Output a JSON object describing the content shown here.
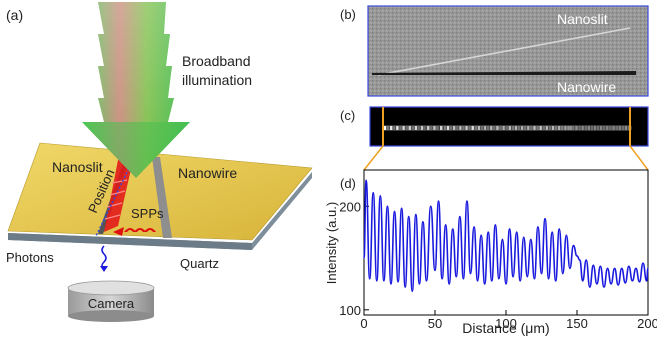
{
  "panels": {
    "a": {
      "tag": "(a)",
      "illumination_line1": "Broadband",
      "illumination_line2": "illumination",
      "nanoslit": "Nanoslit",
      "nanowire": "Nanowire",
      "position": "Position",
      "spps": "SPPs",
      "photons": "Photons",
      "quartz": "Quartz",
      "camera": "Camera"
    },
    "b": {
      "tag": "(b)",
      "nanoslit": "Nanoslit",
      "nanowire": "Nanowire"
    },
    "c": {
      "tag": "(c)"
    },
    "d": {
      "tag": "(d)"
    }
  },
  "colors": {
    "gold": "#e6c84a",
    "substrate": "#8a9aa6",
    "spp_red": "#e01010",
    "line_blue": "#1a1adf",
    "frame_orange": "#f0a020"
  },
  "chart_data": {
    "type": "line",
    "title": "",
    "xlabel": "Distance (μm)",
    "ylabel": "Intensity (a.u.)",
    "xlim": [
      0,
      200
    ],
    "ylim": [
      95,
      235
    ],
    "xticks": [
      0,
      50,
      100,
      150,
      200
    ],
    "yticks": [
      100,
      200
    ],
    "grid": false,
    "legend": "none",
    "series": [
      {
        "values": [
          {
            "x": 0,
            "y": 150
          },
          {
            "x": 1.5,
            "y": 225
          },
          {
            "x": 4,
            "y": 130
          },
          {
            "x": 6.5,
            "y": 213
          },
          {
            "x": 9,
            "y": 128
          },
          {
            "x": 11.5,
            "y": 210
          },
          {
            "x": 14,
            "y": 128
          },
          {
            "x": 16.5,
            "y": 200
          },
          {
            "x": 19,
            "y": 125
          },
          {
            "x": 21.5,
            "y": 195
          },
          {
            "x": 24,
            "y": 127
          },
          {
            "x": 26.5,
            "y": 198
          },
          {
            "x": 29,
            "y": 122
          },
          {
            "x": 31.5,
            "y": 190
          },
          {
            "x": 34,
            "y": 118
          },
          {
            "x": 36.5,
            "y": 192
          },
          {
            "x": 39,
            "y": 125
          },
          {
            "x": 41.5,
            "y": 185
          },
          {
            "x": 44,
            "y": 128
          },
          {
            "x": 47,
            "y": 200
          },
          {
            "x": 50,
            "y": 138
          },
          {
            "x": 52.5,
            "y": 205
          },
          {
            "x": 55,
            "y": 130
          },
          {
            "x": 57.5,
            "y": 182
          },
          {
            "x": 60,
            "y": 125
          },
          {
            "x": 62.5,
            "y": 178
          },
          {
            "x": 65,
            "y": 132
          },
          {
            "x": 67.5,
            "y": 190
          },
          {
            "x": 70,
            "y": 130
          },
          {
            "x": 72.5,
            "y": 205
          },
          {
            "x": 75,
            "y": 135
          },
          {
            "x": 77.5,
            "y": 180
          },
          {
            "x": 80,
            "y": 128
          },
          {
            "x": 82.5,
            "y": 172
          },
          {
            "x": 85,
            "y": 125
          },
          {
            "x": 87.5,
            "y": 175
          },
          {
            "x": 90,
            "y": 128
          },
          {
            "x": 92.5,
            "y": 182
          },
          {
            "x": 95,
            "y": 130
          },
          {
            "x": 97.5,
            "y": 168
          },
          {
            "x": 100,
            "y": 125
          },
          {
            "x": 102.5,
            "y": 178
          },
          {
            "x": 105,
            "y": 132
          },
          {
            "x": 107.5,
            "y": 175
          },
          {
            "x": 110,
            "y": 128
          },
          {
            "x": 112.5,
            "y": 170
          },
          {
            "x": 115,
            "y": 132
          },
          {
            "x": 117.5,
            "y": 168
          },
          {
            "x": 120,
            "y": 130
          },
          {
            "x": 122.5,
            "y": 180
          },
          {
            "x": 125,
            "y": 135
          },
          {
            "x": 127.5,
            "y": 188
          },
          {
            "x": 130,
            "y": 130
          },
          {
            "x": 132.5,
            "y": 175
          },
          {
            "x": 135,
            "y": 128
          },
          {
            "x": 137.5,
            "y": 178
          },
          {
            "x": 140,
            "y": 135
          },
          {
            "x": 142.5,
            "y": 172
          },
          {
            "x": 145,
            "y": 140
          },
          {
            "x": 147.5,
            "y": 162
          },
          {
            "x": 150,
            "y": 152
          },
          {
            "x": 152,
            "y": 148
          },
          {
            "x": 154,
            "y": 128
          },
          {
            "x": 156.5,
            "y": 148
          },
          {
            "x": 159,
            "y": 122
          },
          {
            "x": 161.5,
            "y": 143
          },
          {
            "x": 164,
            "y": 125
          },
          {
            "x": 166.5,
            "y": 142
          },
          {
            "x": 169,
            "y": 122
          },
          {
            "x": 171.5,
            "y": 140
          },
          {
            "x": 174,
            "y": 125
          },
          {
            "x": 176.5,
            "y": 140
          },
          {
            "x": 179,
            "y": 124
          },
          {
            "x": 181.5,
            "y": 140
          },
          {
            "x": 184,
            "y": 126
          },
          {
            "x": 186.5,
            "y": 142
          },
          {
            "x": 189,
            "y": 128
          },
          {
            "x": 191.5,
            "y": 140
          },
          {
            "x": 194,
            "y": 127
          },
          {
            "x": 196.5,
            "y": 145
          },
          {
            "x": 199,
            "y": 128
          },
          {
            "x": 200,
            "y": 140
          }
        ]
      }
    ]
  }
}
